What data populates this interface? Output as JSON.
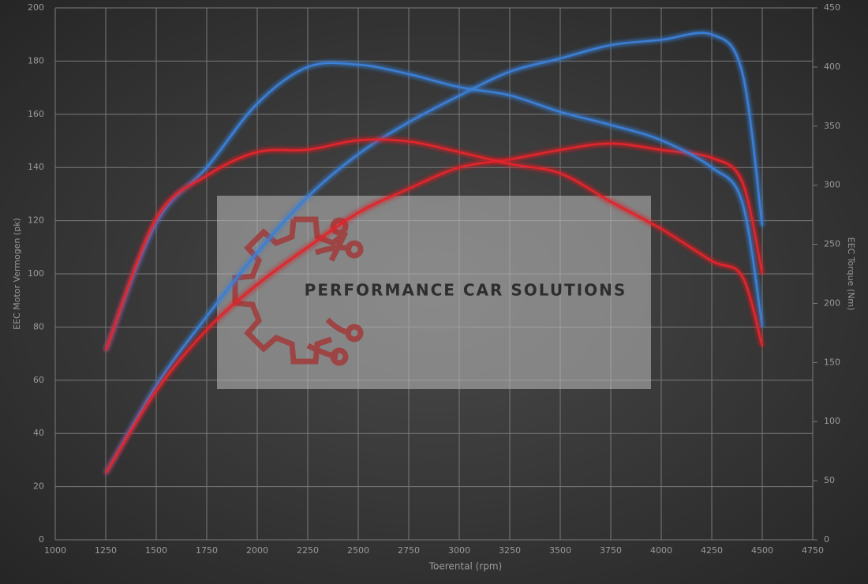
{
  "chart_data": {
    "type": "line",
    "xlabel": "Toerental (rpm)",
    "ylabel": "EEC Motor Vermogen (pk)",
    "y2label": "EEC Torque (Nm)",
    "watermark": "PERFORMANCE CAR SOLUTIONS",
    "x": [
      1250,
      1500,
      1750,
      2000,
      2250,
      2500,
      2750,
      3000,
      3250,
      3500,
      3750,
      4000,
      4250,
      4400,
      4500
    ],
    "series": [
      {
        "color": "#3a7fd6",
        "axis": "y",
        "values": [
          25,
          58,
          84,
          108,
          129,
          145,
          157,
          167,
          176,
          181,
          186,
          188,
          190,
          176,
          118
        ]
      },
      {
        "color": "#e0262c",
        "axis": "y",
        "values": [
          25,
          56,
          79,
          96,
          110,
          123,
          132,
          140,
          143,
          146.6,
          149,
          146.6,
          143.6,
          134.7,
          100
        ]
      },
      {
        "color": "#3a7fd6",
        "axis": "y2",
        "values": [
          160,
          268,
          315,
          369,
          400,
          402,
          394,
          383,
          376,
          362,
          351,
          338,
          315,
          286,
          180
        ]
      },
      {
        "color": "#e0262c",
        "axis": "y2",
        "values": [
          160,
          272,
          308,
          328,
          330,
          338,
          337,
          328,
          318,
          310,
          286,
          263,
          236,
          223,
          164
        ]
      }
    ],
    "xlim": [
      1000,
      4750
    ],
    "xticks": [
      1000,
      1250,
      1500,
      1750,
      2000,
      2250,
      2500,
      2750,
      3000,
      3250,
      3500,
      3750,
      4000,
      4250,
      4500,
      4750
    ],
    "ylim": [
      0,
      200
    ],
    "yticks": [
      0,
      20,
      40,
      60,
      80,
      100,
      120,
      140,
      160,
      180,
      200
    ],
    "y2lim": [
      0,
      450
    ],
    "y2ticks": [
      0,
      50,
      100,
      150,
      200,
      250,
      300,
      350,
      400,
      450
    ],
    "grid": true
  }
}
